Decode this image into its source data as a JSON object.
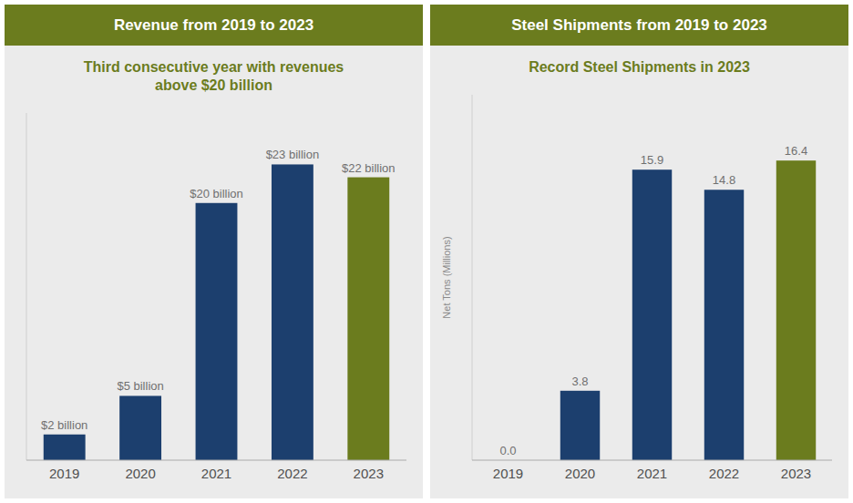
{
  "chart_data": [
    {
      "type": "bar",
      "title": "Revenue from 2019 to 2023",
      "subtitle": "Third consecutive year with revenues\nabove $20 billion",
      "categories": [
        "2019",
        "2020",
        "2021",
        "2022",
        "2023"
      ],
      "values": [
        2,
        5,
        20,
        23,
        22
      ],
      "value_labels": [
        "$2 billion",
        "$5 billion",
        "$20 billion",
        "$23 billion",
        "$22 billion"
      ],
      "colors": [
        "#1c3f6e",
        "#1c3f6e",
        "#1c3f6e",
        "#1c3f6e",
        "#6b7c1e"
      ],
      "ylim": [
        0,
        27
      ],
      "data_labels": true,
      "tick_labels": "x"
    },
    {
      "type": "bar",
      "title": "Steel Shipments from 2019 to 2023",
      "subtitle": "Record Steel Shipments in 2023",
      "y_label": "Net Tons (Millions)",
      "categories": [
        "2019",
        "2020",
        "2021",
        "2022",
        "2023"
      ],
      "values": [
        0.0,
        3.8,
        15.9,
        14.8,
        16.4
      ],
      "value_labels": [
        "0.0",
        "3.8",
        "15.9",
        "14.8",
        "16.4"
      ],
      "colors": [
        "#1c3f6e",
        "#1c3f6e",
        "#1c3f6e",
        "#1c3f6e",
        "#6b7c1e"
      ],
      "ylim": [
        0,
        20
      ],
      "data_labels": true,
      "tick_labels": "x"
    }
  ]
}
